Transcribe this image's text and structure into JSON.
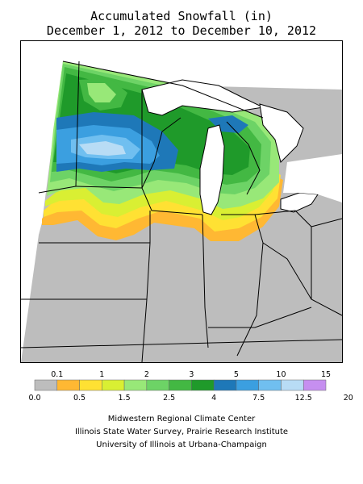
{
  "title": {
    "line1": "Accumulated Snowfall (in)",
    "line2": "December 1, 2012 to December 10, 2012"
  },
  "legend": {
    "colors": [
      "#bdbdbd",
      "#ffb833",
      "#ffe133",
      "#d9ef33",
      "#98e878",
      "#6dd366",
      "#43b843",
      "#1f9a2a",
      "#1e78b8",
      "#3b9fe0",
      "#70bff0",
      "#b8dcf5",
      "#c68ff0"
    ],
    "upper_labels": [
      "0.1",
      "1",
      "2",
      "3",
      "5",
      "10",
      "15"
    ],
    "lower_labels": [
      "0.0",
      "0.5",
      "1.5",
      "2.5",
      "4",
      "7.5",
      "12.5",
      "20"
    ]
  },
  "footer": {
    "line1": "Midwestern Regional Climate Center",
    "line2": "Illinois State Water Survey, Prairie Research Institute",
    "line3": "University of Illinois at Urbana-Champaign"
  }
}
